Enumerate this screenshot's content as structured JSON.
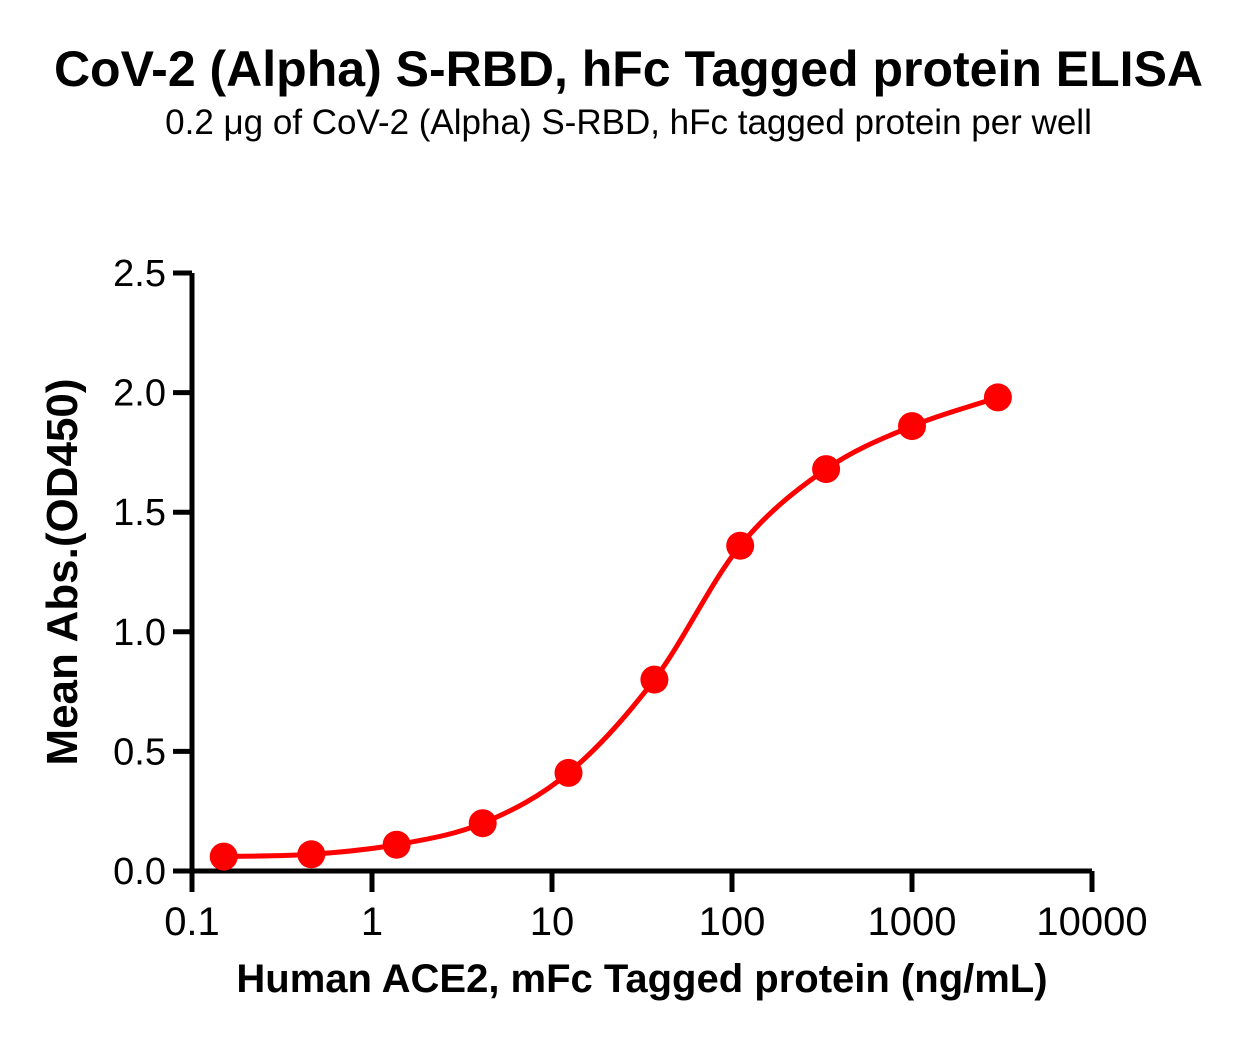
{
  "chart_data": {
    "type": "line",
    "title": "CoV-2 (Alpha) S-RBD, hFc Tagged protein ELISA",
    "subtitle": "0.2 μg of CoV-2 (Alpha) S-RBD, hFc tagged protein per well",
    "xlabel": "Human ACE2, mFc Tagged protein (ng/mL)",
    "ylabel": "Mean Abs.(OD450)",
    "x_scale": "log10",
    "xlim": [
      0.1,
      10000
    ],
    "ylim": [
      0.0,
      2.5
    ],
    "x_tick_values": [
      0.1,
      1,
      10,
      100,
      1000,
      10000
    ],
    "x_tick_labels": [
      "0.1",
      "1",
      "10",
      "100",
      "1000",
      "10000"
    ],
    "y_tick_values": [
      0.0,
      0.5,
      1.0,
      1.5,
      2.0,
      2.5
    ],
    "y_tick_labels": [
      "0.0",
      "0.5",
      "1.0",
      "1.5",
      "2.0",
      "2.5"
    ],
    "grid": false,
    "legend": "none",
    "background_color": "#FFFFFF",
    "axis_color": "#000000",
    "series": [
      {
        "color": "#FF0000",
        "marker": "circle",
        "line_style": "sigmoid-fit",
        "x": [
          0.15,
          0.46,
          1.37,
          4.12,
          12.35,
          37.04,
          111.11,
          333.33,
          1000,
          3000
        ],
        "y": [
          0.06,
          0.07,
          0.11,
          0.2,
          0.41,
          0.8,
          1.36,
          1.68,
          1.86,
          1.98
        ]
      }
    ]
  }
}
